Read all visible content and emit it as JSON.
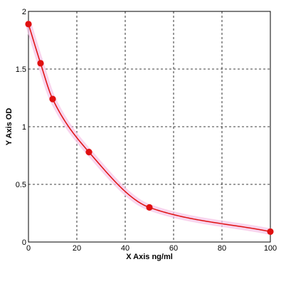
{
  "chart_data": {
    "type": "scatter",
    "title": "",
    "xlabel": "X Axis ng/ml",
    "ylabel": "Y Axis OD",
    "xlim": [
      0,
      100
    ],
    "ylim": [
      0,
      2
    ],
    "x_ticks": [
      "0",
      "20",
      "40",
      "60",
      "80",
      "100"
    ],
    "y_ticks": [
      "0",
      "0.5",
      "1",
      "1.5",
      "2"
    ],
    "grid": true,
    "grid_style": "dashed",
    "series": [
      {
        "points": [
          {
            "x": 0,
            "y": 1.89
          },
          {
            "x": 5,
            "y": 1.55
          },
          {
            "x": 10,
            "y": 1.24
          },
          {
            "x": 25,
            "y": 0.78
          },
          {
            "x": 50,
            "y": 0.3
          },
          {
            "x": 100,
            "y": 0.09
          }
        ],
        "marker_color": "#e01010",
        "curve": "fitted",
        "curve_color": "#e01010"
      }
    ],
    "colors": {
      "curve": "#e01010",
      "marker": "#e01010",
      "shadow": "#f6c7e8",
      "grid": "#000000",
      "axis": "#000000"
    }
  }
}
